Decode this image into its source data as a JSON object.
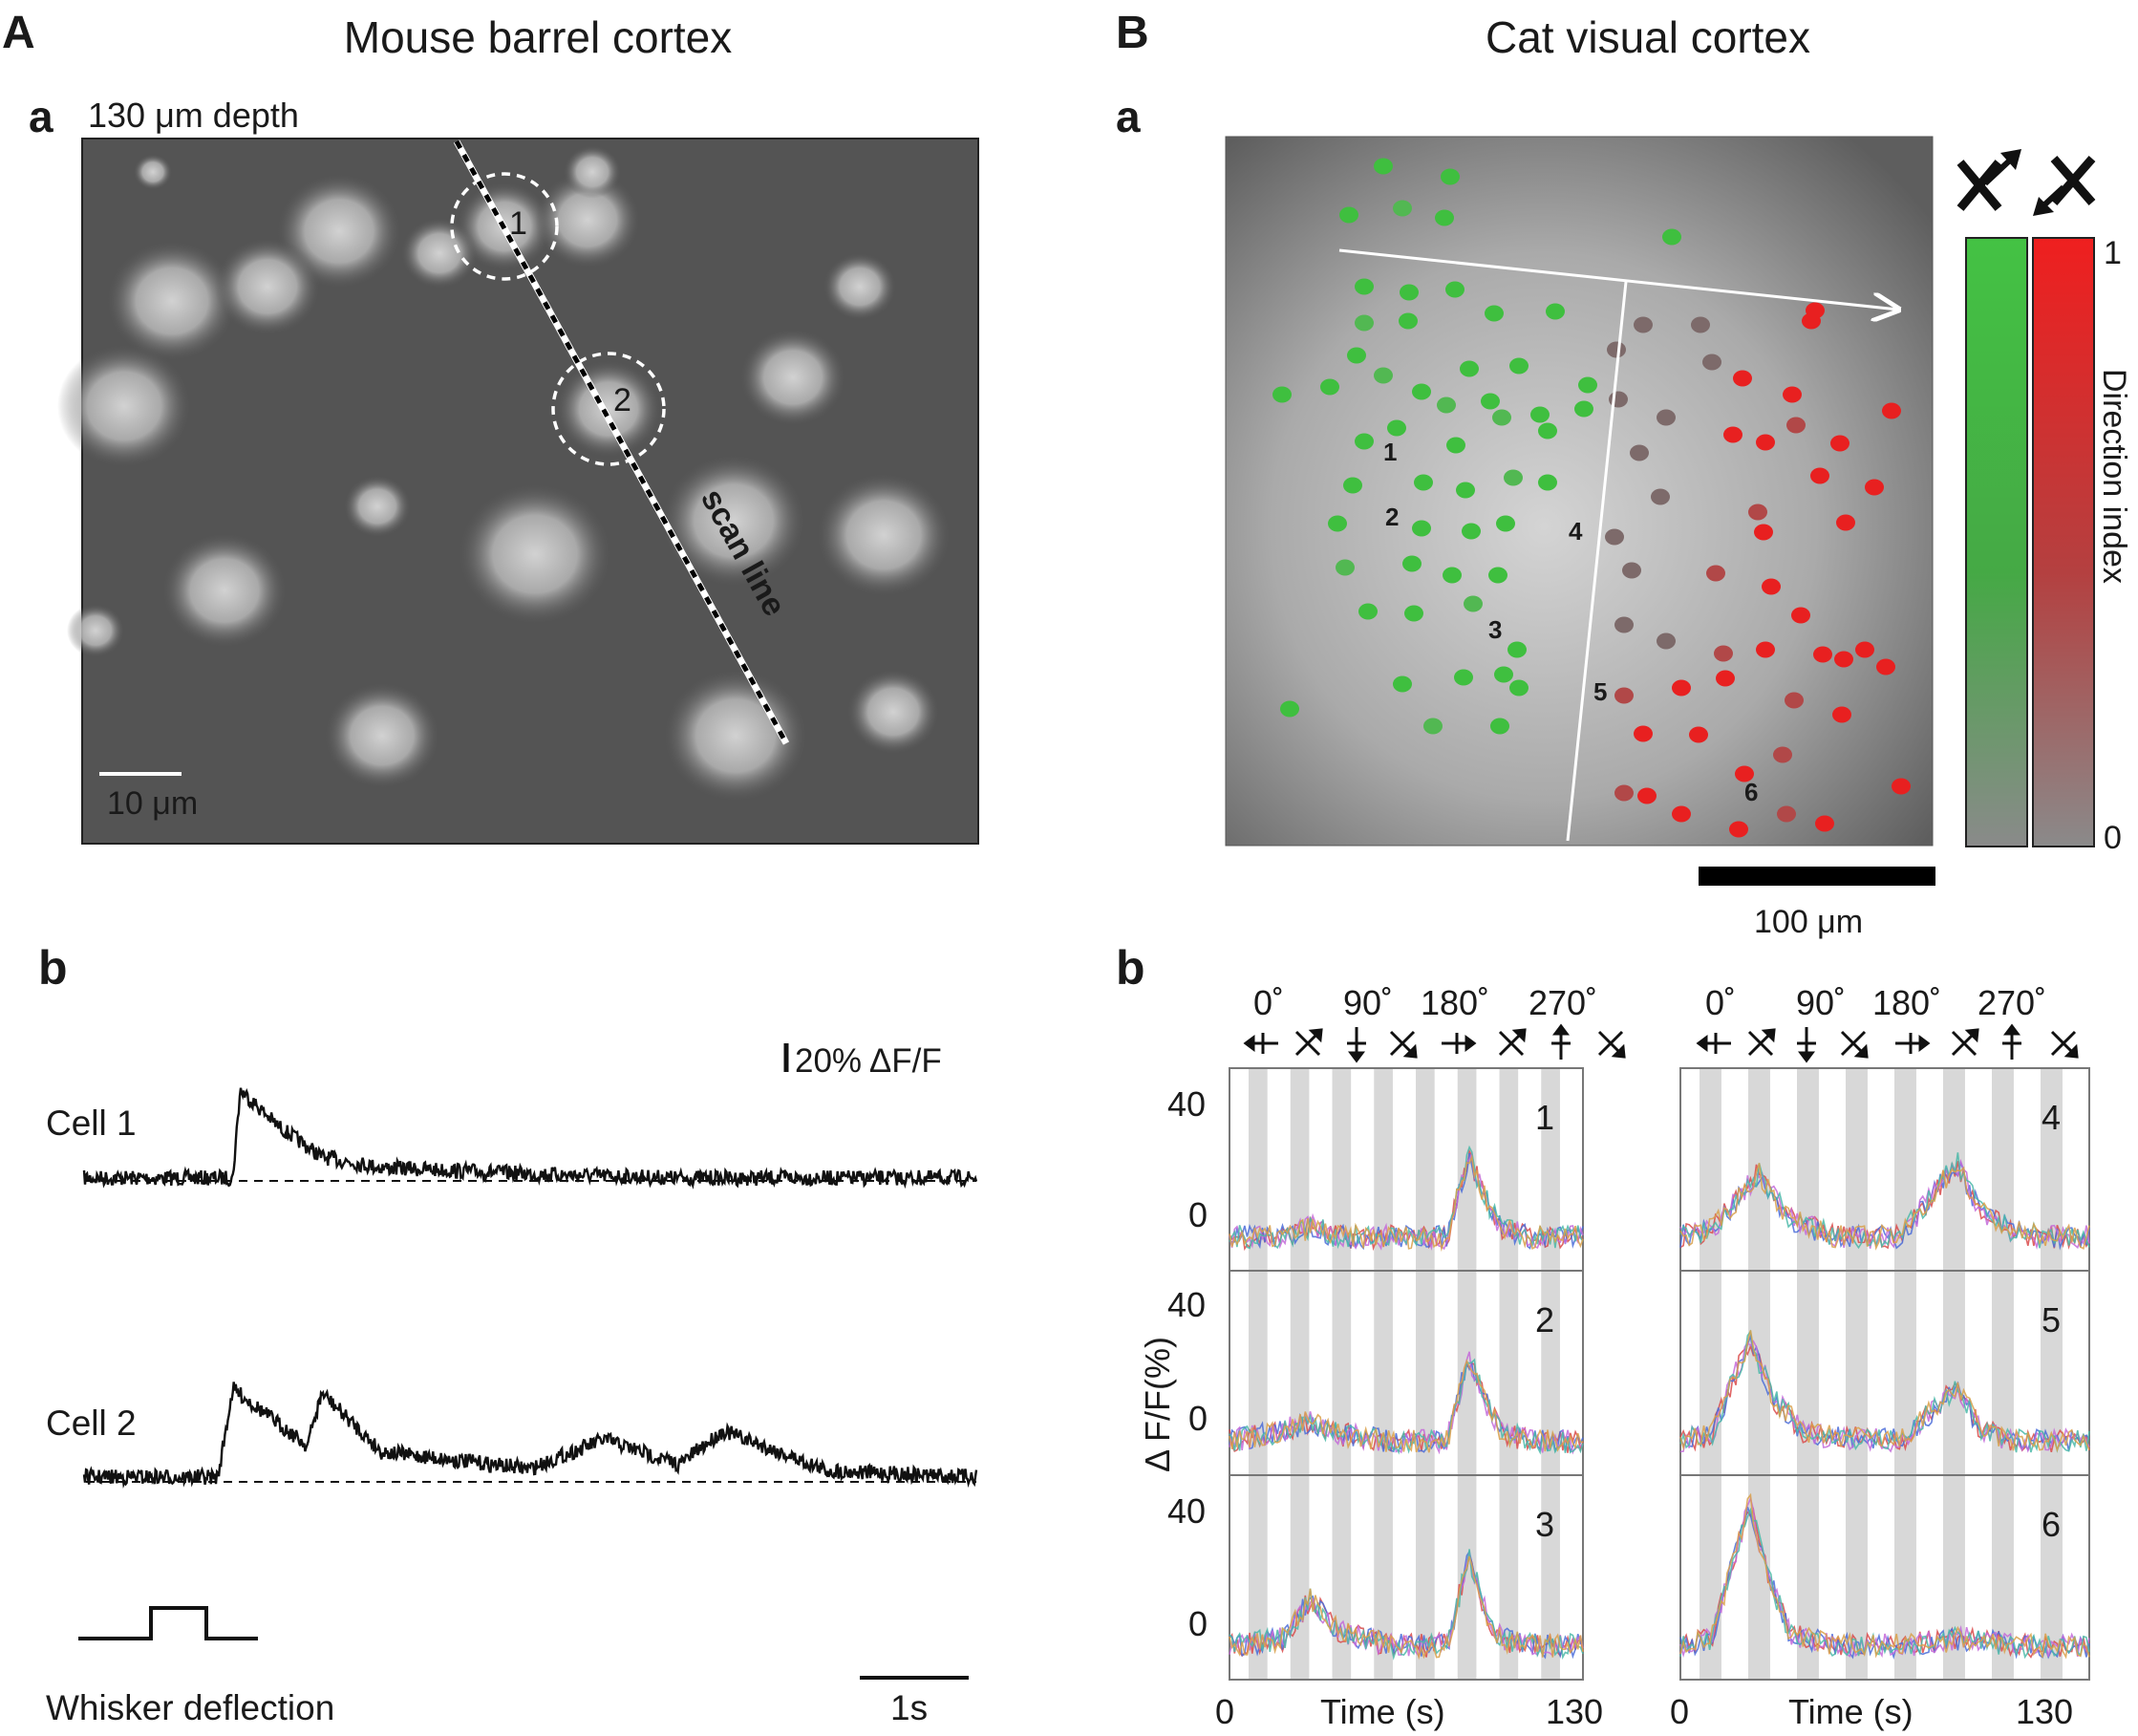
{
  "panel_A": {
    "letter": "A",
    "title": "Mouse barrel cortex",
    "sub_a": {
      "letter": "a",
      "depth_label": "130 μm depth",
      "cell_labels": [
        "1",
        "2"
      ],
      "scan_line_label": "scan line",
      "scalebar_label": "10 μm"
    },
    "sub_b": {
      "letter": "b",
      "scale_label": "20% ΔF/F",
      "cell1_label": "Cell 1",
      "cell2_label": "Cell 2",
      "stimulus_label": "Whisker deflection",
      "time_scalebar_label": "1s"
    }
  },
  "panel_B": {
    "letter": "B",
    "title": "Cat visual cortex",
    "sub_a": {
      "letter": "a",
      "cell_labels": [
        "1",
        "2",
        "3",
        "4",
        "5",
        "6"
      ],
      "colorbar_label": "Direction index",
      "colorbar_ticks": [
        "1",
        "0"
      ],
      "scalebar_label": "100 μm",
      "colors": {
        "green": "#3fbf3f",
        "red": "#e82020",
        "gray": "#777777"
      }
    },
    "sub_b": {
      "letter": "b",
      "angle_labels": [
        "0˚",
        "90˚",
        "180˚",
        "270˚"
      ],
      "ylabel": "Δ F/F(%)",
      "xlabel": "Time (s)",
      "x_ticks": [
        "0",
        "130"
      ],
      "y_ticks": [
        "40",
        "0"
      ],
      "plot_labels": [
        "1",
        "2",
        "3",
        "4",
        "5",
        "6"
      ]
    }
  },
  "chart_data": [
    {
      "type": "line",
      "title": "Cell 1",
      "ylabel": "ΔF/F",
      "xlabel": "",
      "series": [
        {
          "name": "Cell 1",
          "x": [
            0,
            0.5,
            1.0,
            1.05,
            1.3,
            1.6,
            2.0,
            3.0,
            4.0,
            5.0,
            6.0
          ],
          "y": [
            0,
            0,
            0,
            42,
            25,
            10,
            5,
            2,
            0,
            0,
            0
          ]
        }
      ]
    },
    {
      "type": "line",
      "title": "Cell 2",
      "ylabel": "ΔF/F",
      "xlabel": "",
      "series": [
        {
          "name": "Cell 2",
          "x": [
            0,
            0.9,
            1.0,
            1.5,
            1.6,
            2.0,
            3.0,
            3.5,
            4.0,
            4.3,
            5.0,
            6.0
          ],
          "y": [
            0,
            0,
            42,
            15,
            40,
            12,
            4,
            18,
            6,
            22,
            3,
            0
          ]
        }
      ]
    },
    {
      "type": "line",
      "title": "",
      "ylabel": "Δ F/F(%)",
      "xlabel": "Time (s)",
      "xlim": [
        0,
        130
      ],
      "ylim": [
        -10,
        50
      ],
      "series": [
        {
          "name": "1",
          "x": [
            0,
            20,
            30,
            40,
            60,
            80,
            88,
            95,
            100,
            110,
            130
          ],
          "y": [
            0,
            0,
            3,
            0,
            0,
            0,
            24,
            10,
            3,
            0,
            0
          ]
        },
        {
          "name": "2",
          "x": [
            0,
            20,
            30,
            40,
            60,
            80,
            88,
            95,
            100,
            110,
            130
          ],
          "y": [
            0,
            3,
            6,
            2,
            0,
            0,
            25,
            10,
            3,
            0,
            0
          ]
        },
        {
          "name": "3",
          "x": [
            0,
            20,
            30,
            40,
            60,
            80,
            88,
            95,
            100,
            110,
            130
          ],
          "y": [
            0,
            2,
            14,
            4,
            0,
            0,
            26,
            8,
            2,
            0,
            0
          ]
        },
        {
          "name": "4",
          "x": [
            0,
            10,
            25,
            35,
            50,
            70,
            88,
            95,
            105,
            115,
            130
          ],
          "y": [
            0,
            2,
            19,
            5,
            0,
            0,
            22,
            8,
            2,
            0,
            0
          ]
        },
        {
          "name": "5",
          "x": [
            0,
            10,
            22,
            30,
            40,
            70,
            88,
            95,
            105,
            115,
            130
          ],
          "y": [
            0,
            2,
            30,
            12,
            2,
            0,
            16,
            4,
            0,
            0,
            0
          ]
        },
        {
          "name": "6",
          "x": [
            0,
            10,
            22,
            28,
            35,
            50,
            70,
            90,
            110,
            130
          ],
          "y": [
            0,
            2,
            42,
            20,
            3,
            0,
            0,
            2,
            0,
            0
          ]
        }
      ]
    }
  ]
}
